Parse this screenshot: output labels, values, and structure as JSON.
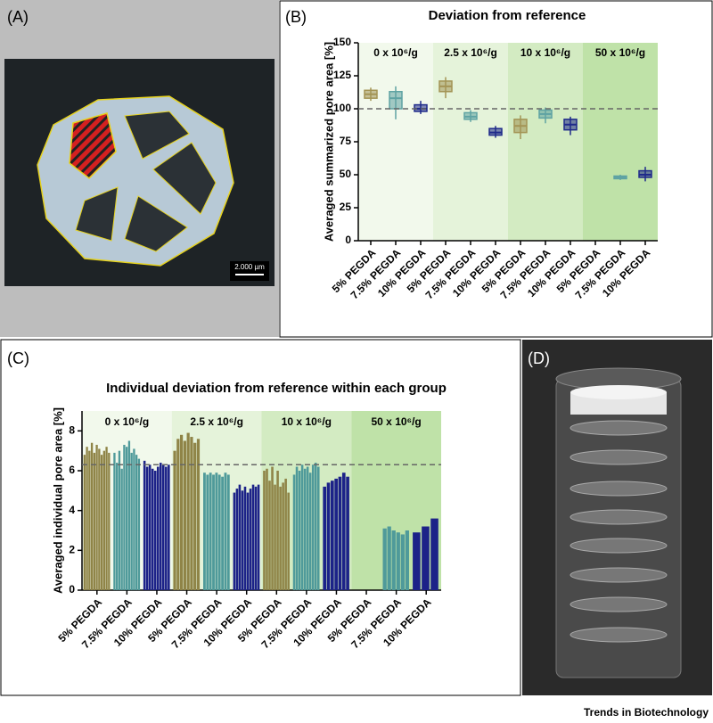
{
  "panels": {
    "a": "(A)",
    "b": "(B)",
    "c": "(C)",
    "d": "(D)"
  },
  "scale_bar": "2.000 µm",
  "footer": "Trends in Biotechnology",
  "chart_data": [
    {
      "type": "box",
      "title": "Deviation from reference",
      "y_label": "Averaged summarized pore area [%]",
      "categories": [
        "5% PEGDA",
        "7.5% PEGDA",
        "10% PEGDA",
        "5% PEGDA",
        "7.5% PEGDA",
        "10% PEGDA",
        "5% PEGDA",
        "7.5% PEGDA",
        "10% PEGDA",
        "5% PEGDA",
        "7.5% PEGDA",
        "10% PEGDA"
      ],
      "colors": [
        "#a39455",
        "#5fa3a3",
        "#1f2a8a",
        "#a39455",
        "#5fa3a3",
        "#1f2a8a",
        "#a39455",
        "#5fa3a3",
        "#1f2a8a",
        "#a39455",
        "#5fa3a3",
        "#1f2a8a"
      ],
      "groups": [
        {
          "label": "0 x 10⁶/g",
          "color": "#f2f9ec"
        },
        {
          "label": "2.5 x 10⁶/g",
          "color": "#e5f3da"
        },
        {
          "label": "10 x 10⁶/g",
          "color": "#d3ebc2"
        },
        {
          "label": "50 x 10⁶/g",
          "color": "#bfe2a8"
        }
      ],
      "min": [
        106,
        92,
        96,
        108,
        90,
        78,
        77,
        89,
        80,
        null,
        46,
        45
      ],
      "q1": [
        108,
        100,
        98,
        113,
        92,
        80,
        82,
        93,
        84,
        null,
        47,
        48
      ],
      "median": [
        111,
        108,
        100,
        117,
        94,
        82,
        87,
        96,
        88,
        null,
        48,
        50
      ],
      "q3": [
        114,
        113,
        103,
        121,
        97,
        85,
        92,
        99,
        92,
        null,
        49,
        53
      ],
      "max": [
        116,
        117,
        106,
        124,
        99,
        87,
        95,
        101,
        94,
        null,
        50,
        56
      ],
      "reference": 100,
      "ylim": [
        0,
        150
      ],
      "yticks": [
        0,
        25,
        50,
        75,
        100,
        125,
        150
      ]
    },
    {
      "type": "bar",
      "title": "Individual deviation from reference within each group",
      "y_label": "Averaged individual pore area [%]",
      "categories": [
        "5% PEGDA",
        "7.5% PEGDA",
        "10% PEGDA",
        "5% PEGDA",
        "7.5% PEGDA",
        "10% PEGDA",
        "5% PEGDA",
        "7.5% PEGDA",
        "10% PEGDA",
        "5% PEGDA",
        "7.5% PEGDA",
        "10% PEGDA"
      ],
      "colors": [
        "#8f8447",
        "#4f9a9a",
        "#1c2288",
        "#8f8447",
        "#4f9a9a",
        "#1c2288",
        "#8f8447",
        "#4f9a9a",
        "#1c2288",
        "#8f8447",
        "#4f9a9a",
        "#1c2288"
      ],
      "groups": [
        {
          "label": "0 x 10⁶/g",
          "color": "#f2f9ec"
        },
        {
          "label": "2.5 x 10⁶/g",
          "color": "#e5f3da"
        },
        {
          "label": "10 x 10⁶/g",
          "color": "#d3ebc2"
        },
        {
          "label": "50 x 10⁶/g",
          "color": "#bfe2a8"
        }
      ],
      "values": [
        [
          6.8,
          7.2,
          7.0,
          7.4,
          6.9,
          7.3,
          7.1,
          6.8,
          7.0,
          7.2,
          6.9
        ],
        [
          6.9,
          6.4,
          7.0,
          6.1,
          7.3,
          7.2,
          7.5,
          6.9,
          7.1,
          6.8,
          6.6
        ],
        [
          6.5,
          6.2,
          6.3,
          6.1,
          6.0,
          6.2,
          6.4,
          6.3,
          6.2,
          6.3
        ],
        [
          7.0,
          7.6,
          7.8,
          7.5,
          7.9,
          7.7,
          7.4,
          7.6
        ],
        [
          5.9,
          5.8,
          5.9,
          5.8,
          5.9,
          5.8,
          5.7,
          5.9,
          5.8
        ],
        [
          4.9,
          5.1,
          5.3,
          5.0,
          5.2,
          4.9,
          5.1,
          5.3,
          5.2,
          5.3
        ],
        [
          6.0,
          6.1,
          5.5,
          6.2,
          5.3,
          6.0,
          5.2,
          5.4,
          5.6,
          4.9
        ],
        [
          5.8,
          6.2,
          6.0,
          6.3,
          6.1,
          6.2,
          5.9,
          6.3,
          6.4,
          6.2
        ],
        [
          5.2,
          5.4,
          5.5,
          5.6,
          5.7,
          5.9,
          5.7
        ],
        [],
        [
          3.1,
          3.2,
          3.0,
          2.9,
          2.8,
          3.0
        ],
        [
          2.9,
          3.2,
          3.6
        ]
      ],
      "reference": 6.3,
      "ylim": [
        0,
        9
      ],
      "yticks": [
        0,
        2,
        4,
        6,
        8
      ]
    }
  ]
}
